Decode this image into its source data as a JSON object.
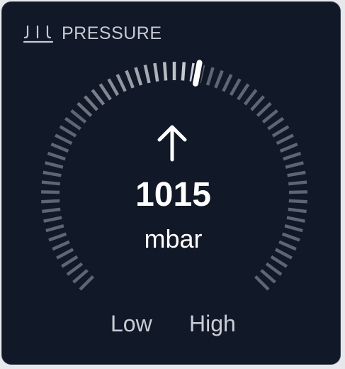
{
  "header": {
    "icon": "pressure-icon",
    "title": "PRESSURE"
  },
  "gauge": {
    "value": "1015",
    "unit": "mbar",
    "trend_icon": "arrow-up-icon",
    "low_label": "Low",
    "high_label": "High",
    "fraction": 0.54,
    "colors": {
      "card_bg": "#111827",
      "tick_dim": "#5d6675",
      "tick_active": "#d1d5db",
      "marker": "#ffffff"
    }
  }
}
